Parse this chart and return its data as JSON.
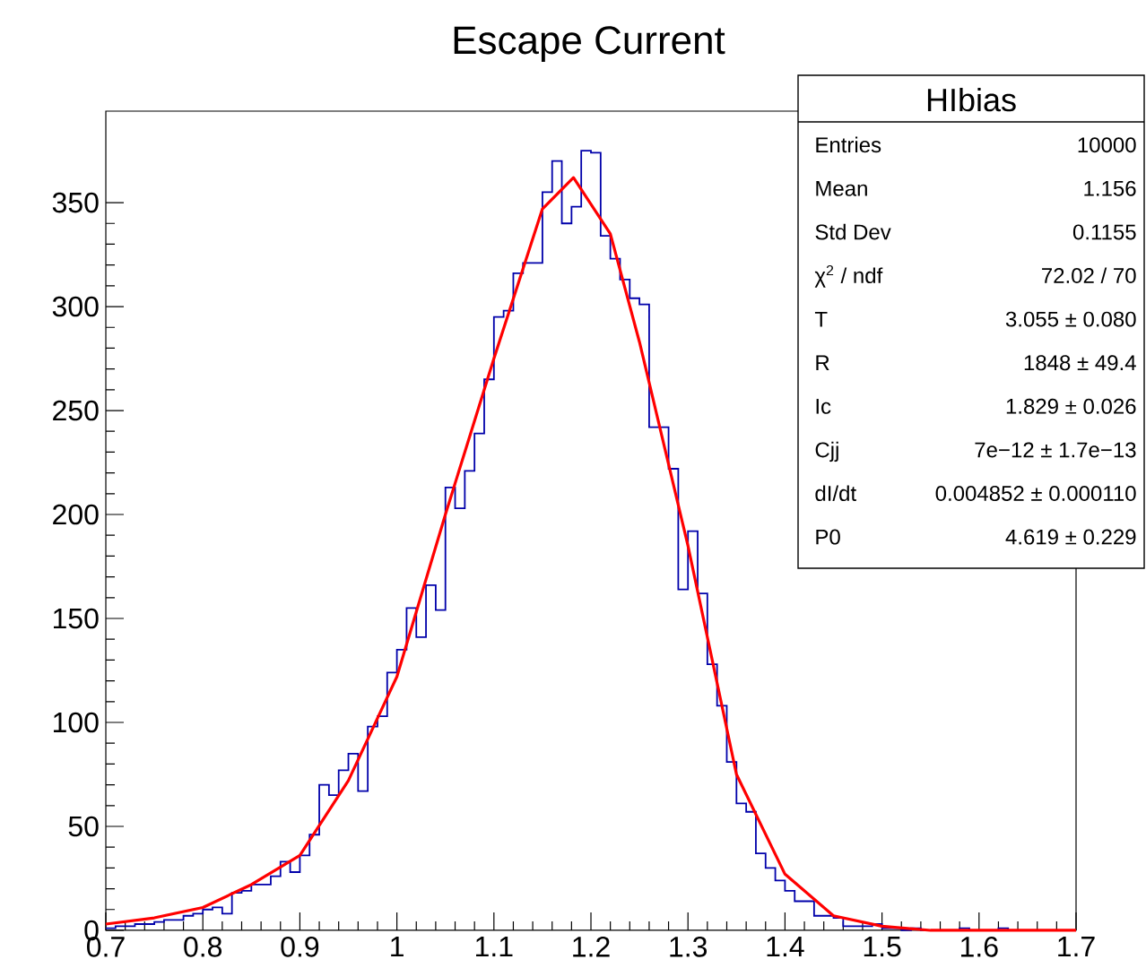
{
  "chart_data": {
    "type": "histogram",
    "title": "Escape Current",
    "bins": [
      0.7,
      0.71,
      0.72,
      0.73,
      0.74,
      0.75,
      0.76,
      0.77,
      0.78,
      0.79,
      0.8,
      0.81,
      0.82,
      0.83,
      0.84,
      0.85,
      0.86,
      0.87,
      0.88,
      0.89,
      0.9,
      0.91,
      0.92,
      0.93,
      0.94,
      0.95,
      0.96,
      0.97,
      0.98,
      0.99,
      1.0,
      1.01,
      1.02,
      1.03,
      1.04,
      1.05,
      1.06,
      1.07,
      1.08,
      1.09,
      1.1,
      1.11,
      1.12,
      1.13,
      1.14,
      1.15,
      1.16,
      1.17,
      1.18,
      1.19,
      1.2,
      1.21,
      1.22,
      1.23,
      1.24,
      1.25,
      1.26,
      1.27,
      1.28,
      1.29,
      1.3,
      1.31,
      1.32,
      1.33,
      1.34,
      1.35,
      1.36,
      1.37,
      1.38,
      1.39,
      1.4,
      1.41,
      1.42,
      1.43,
      1.44,
      1.45,
      1.46,
      1.47,
      1.48,
      1.49,
      1.5,
      1.51,
      1.52,
      1.53,
      1.54,
      1.55,
      1.56,
      1.57,
      1.58,
      1.59,
      1.6,
      1.61,
      1.62,
      1.63,
      1.64,
      1.65,
      1.66,
      1.67,
      1.68,
      1.69,
      1.7
    ],
    "series": [
      {
        "color": "#0000aa",
        "values": [
          1,
          2,
          2,
          3,
          3,
          4,
          5,
          5,
          7,
          8,
          10,
          11,
          8,
          18,
          19,
          22,
          22,
          26,
          33,
          28,
          36,
          46,
          70,
          65,
          77,
          85,
          67,
          98,
          103,
          124,
          135,
          155,
          141,
          166,
          154,
          213,
          203,
          221,
          239,
          265,
          295,
          298,
          316,
          321,
          321,
          355,
          370,
          340,
          348,
          375,
          374,
          334,
          323,
          313,
          304,
          301,
          242,
          242,
          222,
          164,
          192,
          162,
          128,
          108,
          81,
          61,
          57,
          37,
          30,
          24,
          19,
          14,
          14,
          7,
          7,
          6,
          2,
          2,
          2,
          3,
          1,
          1,
          0,
          1,
          0,
          0,
          0,
          0,
          1,
          0,
          0,
          0,
          1,
          0,
          0,
          0,
          0,
          0,
          0,
          0
        ]
      },
      {
        "type": "line",
        "color": "#ff0000",
        "x": [
          0.7,
          0.75,
          0.8,
          0.85,
          0.9,
          0.95,
          1.0,
          1.05,
          1.1,
          1.15,
          1.182,
          1.22,
          1.25,
          1.3,
          1.35,
          1.4,
          1.45,
          1.5,
          1.55,
          1.6,
          1.7
        ],
        "values": [
          3,
          6,
          11,
          22,
          36,
          72,
          122,
          200,
          275,
          347,
          362,
          335,
          283,
          185,
          75,
          27,
          7,
          2,
          0,
          0,
          0
        ]
      }
    ],
    "xlim": [
      0.7,
      1.7
    ],
    "ylim": [
      0,
      394
    ],
    "xticks": [
      0.7,
      0.8,
      0.9,
      1,
      1.1,
      1.2,
      1.3,
      1.4,
      1.5,
      1.6,
      1.7
    ],
    "yticks": [
      0,
      50,
      100,
      150,
      200,
      250,
      300,
      350
    ],
    "annotations": [
      "HIbias",
      "Entries",
      "10000",
      "Mean",
      "1.156",
      "Std Dev",
      "0.1155",
      "χ$^{2}$ / ndf",
      "72.02 / 70",
      "T",
      "3.055 ± 0.080",
      "R",
      "1848 ± 49.4",
      "Ic",
      "1.829 ± 0.026",
      "Cjj",
      "7e−12 ± 1.7e−13",
      "dI/dt",
      "0.004852 ± 0.000110",
      "P0",
      "4.619 ± 0.229"
    ]
  }
}
